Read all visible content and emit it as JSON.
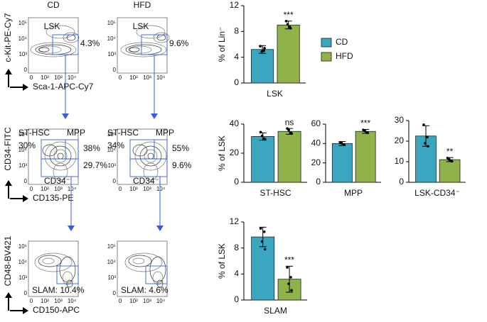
{
  "flow": {
    "columns": [
      "CD",
      "HFD"
    ],
    "xticks": [
      "0",
      "10²",
      "10³",
      "10⁴"
    ],
    "yticks": [
      "0",
      "10³",
      "10⁴",
      "10⁵"
    ],
    "rows": [
      {
        "ylabel": "c-Kit-PE-Cy7",
        "xlabel": "Sca-1-APC-Cy7",
        "panels": [
          [
            "LSK",
            "4.3%"
          ],
          [
            "LSK",
            "9.6%"
          ]
        ]
      },
      {
        "ylabel": "CD34-FITC",
        "xlabel": "CD135-PE",
        "panels": [
          [
            "ST-HSC",
            "MPP",
            "30%",
            "38%",
            "29.7%",
            "CD34⁻"
          ],
          [
            "ST-HSC",
            "MPP",
            "34%",
            "55%",
            "9.6%",
            "CD34⁻"
          ]
        ]
      },
      {
        "ylabel": "CD48-BV421",
        "xlabel": "CD150-APC",
        "panels": [
          [
            "SLAM: 10.4%"
          ],
          [
            "SLAM: 4.6%"
          ]
        ]
      }
    ]
  },
  "chart_data": [
    {
      "type": "bar",
      "categories": [
        "LSK"
      ],
      "ylabel": "% of Lin⁻",
      "ylim": [
        0,
        12
      ],
      "yticks": [
        0,
        4,
        8,
        12
      ],
      "legend": true,
      "annotation": "***",
      "series": [
        {
          "name": "CD",
          "color": "#3aa6c0",
          "values": [
            5.2
          ],
          "errors": [
            0.6
          ],
          "points": [
            [
              5.7,
              5.0,
              4.9,
              5.4
            ]
          ]
        },
        {
          "name": "HFD",
          "color": "#8fb24b",
          "values": [
            9.0
          ],
          "errors": [
            0.6
          ],
          "points": [
            [
              9.6,
              8.7,
              9.1,
              8.5
            ]
          ]
        }
      ]
    },
    {
      "type": "bar",
      "categories": [
        "ST-HSC"
      ],
      "ylabel": "% of LSK",
      "ylim": [
        0,
        40
      ],
      "yticks": [
        0,
        20,
        40
      ],
      "annotation": "ns",
      "series": [
        {
          "name": "CD",
          "color": "#3aa6c0",
          "values": [
            31.5
          ],
          "errors": [
            2.5
          ],
          "points": [
            [
              34.5,
              30,
              32,
              29.5
            ]
          ]
        },
        {
          "name": "HFD",
          "color": "#8fb24b",
          "values": [
            35
          ],
          "errors": [
            2
          ],
          "points": [
            [
              37,
              34,
              36,
              33.5
            ]
          ]
        }
      ]
    },
    {
      "type": "bar",
      "categories": [
        "MPP"
      ],
      "ylim": [
        0,
        60
      ],
      "yticks": [
        0,
        20,
        40,
        60
      ],
      "annotation": "***",
      "series": [
        {
          "name": "CD",
          "color": "#3aa6c0",
          "values": [
            40
          ],
          "errors": [
            2
          ],
          "points": [
            [
              41,
              39,
              40.5,
              38.5
            ]
          ]
        },
        {
          "name": "HFD",
          "color": "#8fb24b",
          "values": [
            52.5
          ],
          "errors": [
            2
          ],
          "points": [
            [
              54,
              51.5,
              53,
              51
            ]
          ]
        }
      ]
    },
    {
      "type": "bar",
      "categories": [
        "LSK-CD34⁻"
      ],
      "ylim": [
        0,
        30
      ],
      "yticks": [
        0,
        10,
        20,
        30
      ],
      "annotation": "**",
      "series": [
        {
          "name": "CD",
          "color": "#3aa6c0",
          "values": [
            22.5
          ],
          "errors": [
            5
          ],
          "points": [
            [
              28,
              22,
              19,
              17.5
            ]
          ]
        },
        {
          "name": "HFD",
          "color": "#8fb24b",
          "values": [
            11
          ],
          "errors": [
            1
          ],
          "points": [
            [
              11.8,
              10.5,
              11,
              10.2
            ]
          ]
        }
      ]
    },
    {
      "type": "bar",
      "categories": [
        "SLAM"
      ],
      "ylabel": "% of LSK",
      "ylim": [
        0,
        12
      ],
      "yticks": [
        0,
        4,
        8,
        12
      ],
      "annotation": "***",
      "series": [
        {
          "name": "CD",
          "color": "#3aa6c0",
          "values": [
            9.7
          ],
          "errors": [
            1.5
          ],
          "points": [
            [
              11,
              10.5,
              9,
              7.8
            ]
          ]
        },
        {
          "name": "HFD",
          "color": "#8fb24b",
          "values": [
            3.2
          ],
          "errors": [
            2
          ],
          "points": [
            [
              5,
              3.5,
              2.5,
              1.5
            ]
          ]
        }
      ]
    }
  ]
}
